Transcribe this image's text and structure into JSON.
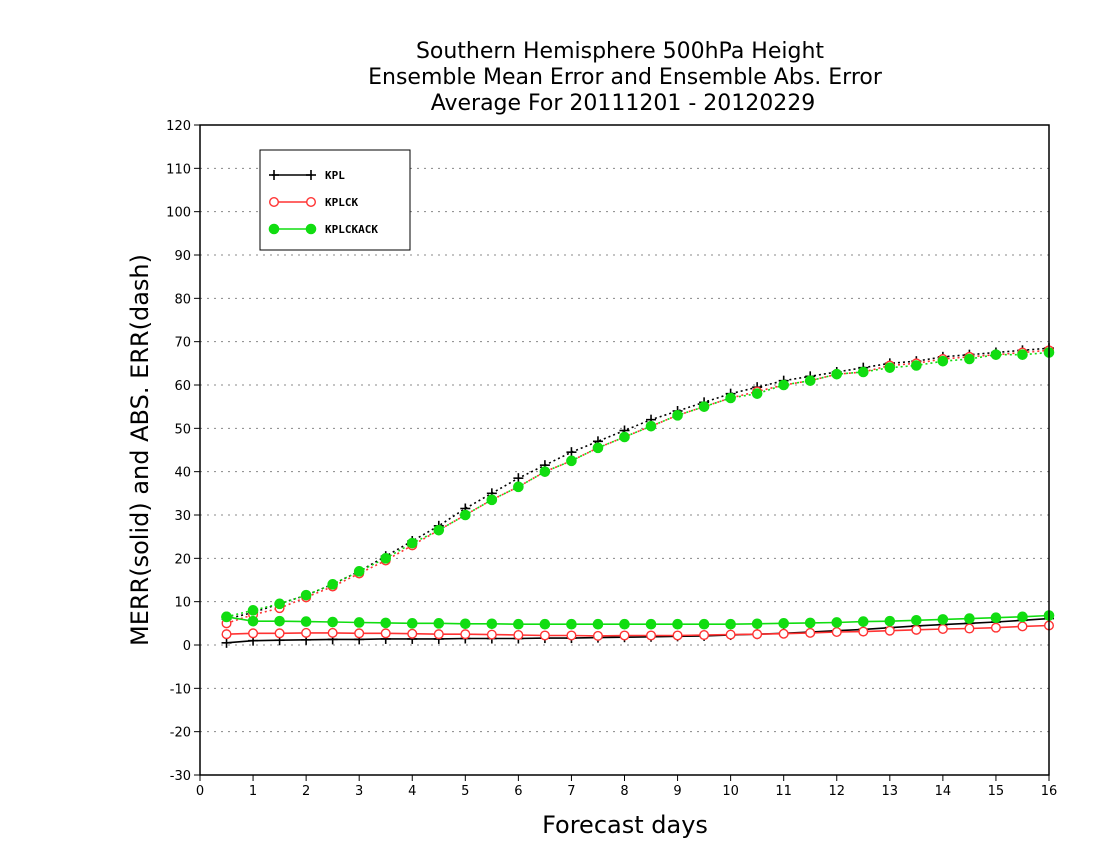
{
  "chart_data": {
    "type": "line",
    "title_lines": [
      "Southern Hemisphere 500hPa Height",
      "Ensemble Mean Error and Ensemble Abs. Error",
      "Average For 20111201 - 20120229"
    ],
    "xlabel": "Forecast days",
    "ylabel": "MERR(solid) and ABS. ERR(dash)",
    "xlim": [
      0,
      16
    ],
    "ylim": [
      -30,
      120
    ],
    "xticks": [
      0,
      1,
      2,
      3,
      4,
      5,
      6,
      7,
      8,
      9,
      10,
      11,
      12,
      13,
      14,
      15,
      16
    ],
    "yticks": [
      -30,
      -20,
      -10,
      0,
      10,
      20,
      30,
      40,
      50,
      60,
      70,
      80,
      90,
      100,
      110,
      120
    ],
    "grid": "horizontal dotted",
    "legend_position": "top-left",
    "x": [
      0.5,
      1,
      1.5,
      2,
      2.5,
      3,
      3.5,
      4,
      4.5,
      5,
      5.5,
      6,
      6.5,
      7,
      7.5,
      8,
      8.5,
      9,
      9.5,
      10,
      10.5,
      11,
      11.5,
      12,
      12.5,
      13,
      13.5,
      14,
      14.5,
      15,
      15.5,
      16
    ],
    "series": [
      {
        "color": "#000000",
        "marker": "plus",
        "legend_label": "KPL",
        "merr": [
          0.5,
          1.0,
          1.1,
          1.2,
          1.3,
          1.3,
          1.4,
          1.4,
          1.4,
          1.5,
          1.5,
          1.5,
          1.6,
          1.6,
          1.7,
          1.8,
          1.9,
          2.0,
          2.1,
          2.3,
          2.5,
          2.7,
          3.0,
          3.3,
          3.6,
          4.0,
          4.4,
          4.7,
          5.0,
          5.3,
          5.7,
          6.1
        ],
        "abs_err": [
          6.0,
          7.5,
          9.5,
          11.5,
          14.0,
          17.0,
          20.5,
          24.0,
          27.5,
          31.5,
          35.0,
          38.5,
          41.5,
          44.5,
          47.0,
          49.5,
          52.0,
          54.0,
          56.0,
          58.0,
          59.5,
          61.0,
          62.0,
          63.0,
          64.0,
          65.0,
          65.5,
          66.5,
          67.0,
          67.5,
          68.0,
          68.5
        ]
      },
      {
        "color": "#ff3333",
        "marker": "open-circle",
        "legend_label": "KPLCK",
        "merr": [
          2.5,
          2.7,
          2.7,
          2.8,
          2.8,
          2.7,
          2.7,
          2.6,
          2.5,
          2.5,
          2.4,
          2.3,
          2.2,
          2.2,
          2.1,
          2.2,
          2.2,
          2.2,
          2.3,
          2.4,
          2.5,
          2.6,
          2.8,
          3.0,
          3.1,
          3.3,
          3.5,
          3.7,
          3.8,
          4.0,
          4.3,
          4.5
        ],
        "abs_err": [
          5.0,
          7.0,
          8.5,
          11.0,
          13.5,
          16.5,
          19.5,
          23.0,
          26.5,
          30.0,
          33.5,
          36.5,
          40.0,
          42.5,
          45.5,
          48.0,
          50.5,
          53.0,
          55.0,
          57.0,
          58.5,
          60.0,
          61.0,
          62.5,
          63.0,
          64.5,
          65.0,
          66.0,
          66.5,
          67.0,
          67.5,
          68.0
        ]
      },
      {
        "color": "#11dd11",
        "marker": "filled-circle",
        "legend_label": "KPLCKACK",
        "merr": [
          6.5,
          5.5,
          5.5,
          5.4,
          5.3,
          5.2,
          5.1,
          5.0,
          5.0,
          4.9,
          4.9,
          4.8,
          4.8,
          4.8,
          4.8,
          4.8,
          4.8,
          4.8,
          4.8,
          4.8,
          4.9,
          5.0,
          5.1,
          5.2,
          5.4,
          5.5,
          5.7,
          5.9,
          6.1,
          6.3,
          6.5,
          6.8
        ],
        "abs_err": [
          6.5,
          8.0,
          9.5,
          11.5,
          14.0,
          17.0,
          20.0,
          23.5,
          26.5,
          30.0,
          33.5,
          36.5,
          40.0,
          42.5,
          45.5,
          48.0,
          50.5,
          53.0,
          55.0,
          57.0,
          58.0,
          60.0,
          61.0,
          62.5,
          63.0,
          64.0,
          64.5,
          65.5,
          66.0,
          67.0,
          67.0,
          67.5
        ]
      }
    ]
  }
}
